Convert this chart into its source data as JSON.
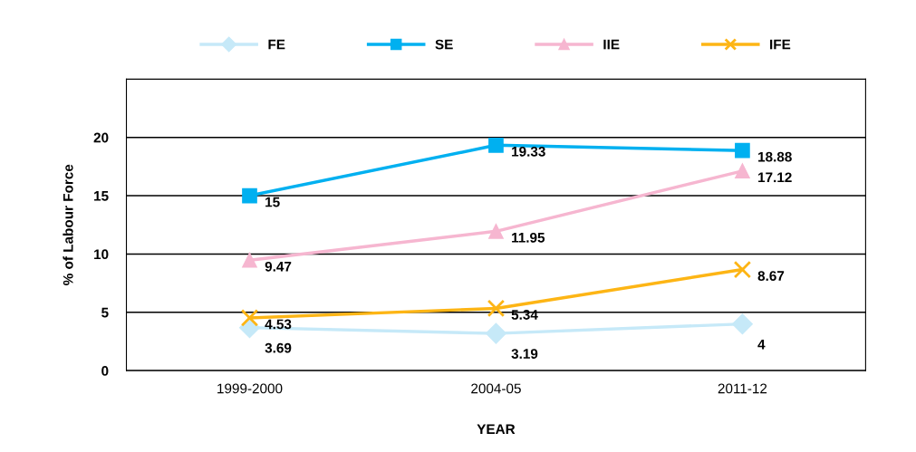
{
  "chart_data": {
    "type": "line",
    "xlabel": "YEAR",
    "ylabel": "% of Labour Force",
    "categories": [
      "1999-2000",
      "2004-05",
      "2011-12"
    ],
    "series": [
      {
        "name": "FE",
        "color": "#c6e9f8",
        "marker": "diamond",
        "values": [
          3.69,
          3.19,
          4
        ]
      },
      {
        "name": "SE",
        "color": "#00b0f0",
        "marker": "square",
        "values": [
          15,
          19.33,
          18.88
        ]
      },
      {
        "name": "IIE",
        "color": "#f6b6d0",
        "marker": "triangle",
        "values": [
          9.47,
          11.95,
          17.12
        ]
      },
      {
        "name": "IFE",
        "color": "#fdb515",
        "marker": "cross",
        "values": [
          4.53,
          5.34,
          8.67
        ]
      }
    ],
    "ylim": [
      0,
      25
    ],
    "yticks": [
      0,
      5,
      10,
      15,
      20
    ],
    "grid": "y",
    "legend": "top",
    "data_labels": true,
    "line_style": "solid"
  }
}
